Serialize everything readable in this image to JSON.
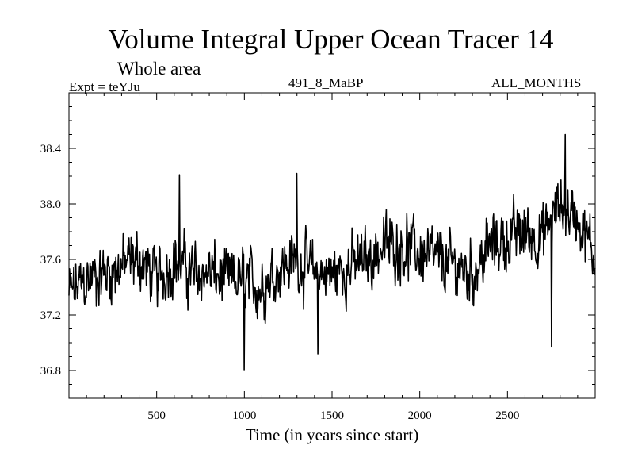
{
  "header": {
    "title": "Volume Integral Upper Ocean Tracer 14",
    "subtitle": "Whole area",
    "expt": "Expt = teYJu",
    "run": "491_8_MaBP",
    "months": "ALL_MONTHS"
  },
  "chart_data": {
    "type": "line",
    "title": "Volume Integral Upper Ocean Tracer 14",
    "subtitle": "Whole area",
    "xlabel": "Time (in years since start)",
    "ylabel": "",
    "xlim": [
      0,
      3000
    ],
    "ylim": [
      36.6,
      38.8
    ],
    "xticks": [
      500,
      1000,
      1500,
      2000,
      2500
    ],
    "xtick_labels": [
      "500",
      "1000",
      "1500",
      "2000",
      "2500"
    ],
    "yticks": [
      36.8,
      37.2,
      37.6,
      38.0,
      38.4
    ],
    "ytick_labels": [
      "36.8",
      "37.2",
      "37.6",
      "38.0",
      "38.4"
    ],
    "series": [
      {
        "name": "Tracer 14",
        "x": [
          0,
          100,
          200,
          300,
          400,
          500,
          600,
          700,
          800,
          900,
          1000,
          1100,
          1200,
          1300,
          1400,
          1500,
          1600,
          1700,
          1800,
          1900,
          2000,
          2100,
          2200,
          2300,
          2400,
          2500,
          2600,
          2700,
          2800,
          2900,
          3000
        ],
        "values": [
          37.35,
          37.45,
          37.5,
          37.55,
          37.6,
          37.45,
          37.6,
          37.5,
          37.5,
          37.45,
          37.45,
          37.4,
          37.55,
          37.6,
          37.5,
          37.5,
          37.55,
          37.6,
          37.7,
          37.7,
          37.65,
          37.6,
          37.55,
          37.5,
          37.7,
          37.75,
          37.8,
          37.75,
          38.0,
          37.9,
          37.6
        ],
        "noise_amplitude": 0.28,
        "spikes": [
          {
            "x": 1000,
            "y": 36.8
          },
          {
            "x": 1300,
            "y": 38.22
          },
          {
            "x": 2830,
            "y": 38.5
          },
          {
            "x": 2750,
            "y": 36.97
          },
          {
            "x": 630,
            "y": 38.21
          },
          {
            "x": 1420,
            "y": 36.92
          }
        ]
      }
    ]
  }
}
